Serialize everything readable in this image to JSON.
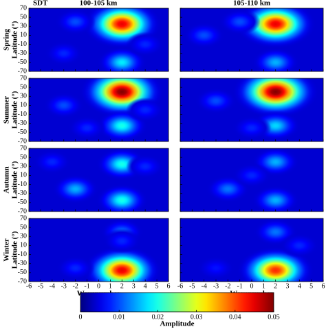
{
  "chart_data": {
    "type": "heatmap",
    "label": "SDT",
    "columns": [
      "100-105 km",
      "105-110 km"
    ],
    "rows": [
      "Spring",
      "Summer",
      "Autumn",
      "Winter"
    ],
    "ylabel": "Latitude (°)",
    "xlabel": "Wavenumber",
    "xlim": [
      -6,
      6
    ],
    "xticks": [
      -6,
      -5,
      -4,
      -3,
      -2,
      -1,
      0,
      1,
      2,
      3,
      4,
      5,
      6
    ],
    "ylim": [
      -70,
      70
    ],
    "yticks": [
      -70,
      -50,
      -30,
      -10,
      10,
      30,
      50,
      70
    ],
    "colorbar": {
      "label": "Amplitude",
      "lim": [
        0,
        0.05
      ],
      "ticks": [
        0,
        0.01,
        0.02,
        0.03,
        0.04,
        0.05
      ]
    },
    "background": 0.004,
    "panels": [
      [
        [
          {
            "x": 2,
            "y": 35,
            "value": 0.045
          },
          {
            "x": 2,
            "y": -50,
            "value": 0.018
          },
          {
            "x": -2,
            "y": 40,
            "value": 0.01
          },
          {
            "x": -3,
            "y": -30,
            "value": 0.008
          },
          {
            "x": 4,
            "y": -10,
            "value": 0.008
          }
        ],
        [
          {
            "x": 2,
            "y": 35,
            "value": 0.045
          },
          {
            "x": 2,
            "y": -50,
            "value": 0.015
          },
          {
            "x": -4,
            "y": 10,
            "value": 0.01
          },
          {
            "x": -1,
            "y": 40,
            "value": 0.01
          }
        ]
      ],
      [
        [
          {
            "x": 2,
            "y": 40,
            "value": 0.05
          },
          {
            "x": 2,
            "y": -35,
            "value": 0.02
          },
          {
            "x": -3,
            "y": 10,
            "value": 0.01
          },
          {
            "x": -1,
            "y": -40,
            "value": 0.008
          },
          {
            "x": 4,
            "y": 0,
            "value": 0.008
          }
        ],
        [
          {
            "x": 2,
            "y": 40,
            "value": 0.05
          },
          {
            "x": 2,
            "y": -35,
            "value": 0.017
          },
          {
            "x": -3,
            "y": 20,
            "value": 0.01
          },
          {
            "x": 0,
            "y": -40,
            "value": 0.008
          }
        ]
      ],
      [
        [
          {
            "x": 2,
            "y": 35,
            "value": 0.02
          },
          {
            "x": 2,
            "y": -45,
            "value": 0.02
          },
          {
            "x": -2,
            "y": -20,
            "value": 0.015
          },
          {
            "x": -4,
            "y": 40,
            "value": 0.008
          },
          {
            "x": 4,
            "y": 30,
            "value": 0.008
          }
        ],
        [
          {
            "x": 2,
            "y": 40,
            "value": 0.015
          },
          {
            "x": 2,
            "y": -45,
            "value": 0.015
          },
          {
            "x": -2,
            "y": -20,
            "value": 0.012
          },
          {
            "x": 0,
            "y": 10,
            "value": 0.008
          }
        ]
      ],
      [
        [
          {
            "x": 2,
            "y": -45,
            "value": 0.045
          },
          {
            "x": 2,
            "y": 40,
            "value": 0.012
          },
          {
            "x": 2,
            "y": 20,
            "value": 0.008
          },
          {
            "x": -2,
            "y": -40,
            "value": 0.008
          }
        ],
        [
          {
            "x": 2,
            "y": -45,
            "value": 0.042
          },
          {
            "x": 2,
            "y": 40,
            "value": 0.012
          },
          {
            "x": 4,
            "y": 10,
            "value": 0.008
          },
          {
            "x": -3,
            "y": -40,
            "value": 0.007
          }
        ]
      ]
    ]
  }
}
